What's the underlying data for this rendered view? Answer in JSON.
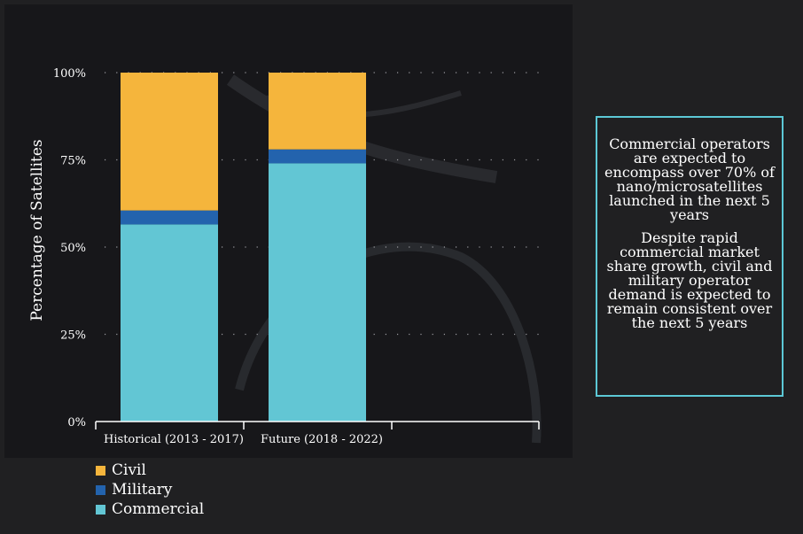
{
  "chart_data": {
    "type": "bar",
    "stacked": true,
    "categories": [
      "Historical (2013 - 2017)",
      "Future (2018 - 2022)"
    ],
    "series": [
      {
        "name": "Commercial",
        "values": [
          56.5,
          74
        ],
        "color": "#62c6d4"
      },
      {
        "name": "Military",
        "values": [
          4,
          4
        ],
        "color": "#2363ad"
      },
      {
        "name": "Civil",
        "values": [
          39.5,
          22
        ],
        "color": "#f5b53c"
      }
    ],
    "ylabel": "Percentage of Satellites",
    "ylim": [
      0,
      100
    ],
    "yticks": [
      "0%",
      "25%",
      "50%",
      "75%",
      "100%"
    ],
    "grid": true,
    "legend_position": "bottom-left"
  },
  "legend": {
    "items": [
      {
        "label": "Civil",
        "color": "#f5b53c"
      },
      {
        "label": "Military",
        "color": "#2363ad"
      },
      {
        "label": "Commercial",
        "color": "#62c6d4"
      }
    ]
  },
  "note": {
    "text1": "Commercial operators are expected to encompass over 70% of nano/microsatellites launched in the next 5 years",
    "text2": "Despite rapid commercial market share growth, civil and military operator demand is expected to remain consistent over the next 5 years"
  }
}
